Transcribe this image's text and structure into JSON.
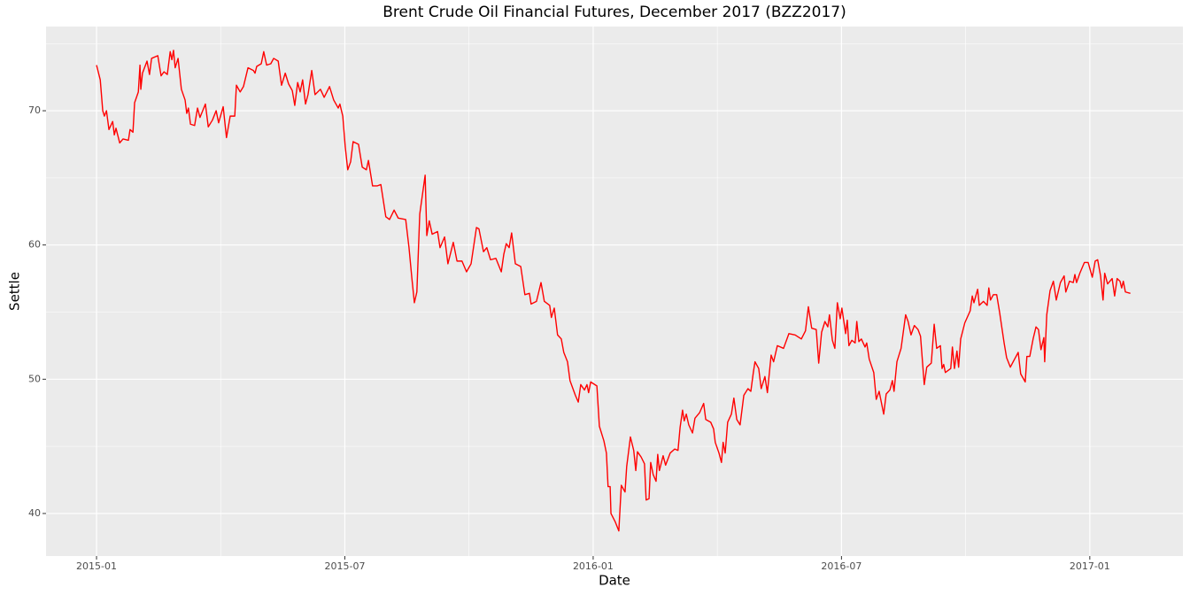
{
  "chart_data": {
    "type": "line",
    "title": "Brent Crude Oil Financial Futures, December 2017 (BZZ2017)",
    "x_label": "Date",
    "y_label": "Settle",
    "color": "#ff0000",
    "grid": true,
    "minor_grid": true,
    "xlim": [
      -1.22,
      26.25
    ],
    "ylim": [
      36.83,
      76.27
    ],
    "xticks": [
      {
        "value": 0,
        "label": "2015-01"
      },
      {
        "value": 6,
        "label": "2015-07"
      },
      {
        "value": 12,
        "label": "2016-01"
      },
      {
        "value": 18,
        "label": "2016-07"
      },
      {
        "value": 24,
        "label": "2017-01"
      }
    ],
    "yticks": [
      40,
      50,
      60,
      70
    ],
    "x": [
      0.0,
      0.09,
      0.15,
      0.19,
      0.24,
      0.3,
      0.39,
      0.43,
      0.47,
      0.56,
      0.64,
      0.77,
      0.81,
      0.88,
      0.92,
      1.01,
      1.05,
      1.07,
      1.11,
      1.22,
      1.28,
      1.33,
      1.48,
      1.56,
      1.63,
      1.71,
      1.78,
      1.82,
      1.86,
      1.9,
      1.97,
      2.05,
      2.14,
      2.18,
      2.22,
      2.27,
      2.37,
      2.44,
      2.5,
      2.63,
      2.7,
      2.8,
      2.89,
      2.95,
      3.06,
      3.14,
      3.23,
      3.34,
      3.38,
      3.47,
      3.55,
      3.66,
      3.79,
      3.83,
      3.87,
      3.98,
      4.04,
      4.11,
      4.21,
      4.28,
      4.39,
      4.47,
      4.56,
      4.64,
      4.73,
      4.79,
      4.86,
      4.92,
      4.98,
      5.05,
      5.11,
      5.2,
      5.28,
      5.41,
      5.5,
      5.63,
      5.73,
      5.84,
      5.88,
      5.95,
      6.01,
      6.07,
      6.14,
      6.2,
      6.33,
      6.42,
      6.52,
      6.57,
      6.67,
      6.78,
      6.87,
      6.93,
      6.99,
      7.08,
      7.19,
      7.29,
      7.47,
      7.55,
      7.62,
      7.68,
      7.74,
      7.81,
      7.94,
      7.98,
      8.04,
      8.11,
      8.24,
      8.3,
      8.41,
      8.49,
      8.62,
      8.71,
      8.83,
      8.94,
      9.05,
      9.18,
      9.24,
      9.35,
      9.43,
      9.52,
      9.65,
      9.78,
      9.84,
      9.9,
      9.97,
      10.03,
      10.12,
      10.25,
      10.35,
      10.46,
      10.5,
      10.63,
      10.74,
      10.82,
      10.95,
      10.99,
      11.06,
      11.14,
      11.23,
      11.29,
      11.38,
      11.44,
      11.57,
      11.64,
      11.7,
      11.79,
      11.85,
      11.89,
      11.94,
      12.09,
      12.15,
      12.26,
      12.32,
      12.36,
      12.41,
      12.43,
      12.53,
      12.62,
      12.68,
      12.77,
      12.81,
      12.9,
      12.98,
      13.03,
      13.07,
      13.16,
      13.24,
      13.28,
      13.35,
      13.39,
      13.45,
      13.52,
      13.56,
      13.6,
      13.69,
      13.75,
      13.86,
      13.97,
      14.05,
      14.1,
      14.16,
      14.2,
      14.25,
      14.31,
      14.4,
      14.46,
      14.57,
      14.67,
      14.72,
      14.84,
      14.91,
      14.95,
      15.04,
      15.1,
      15.14,
      15.19,
      15.25,
      15.34,
      15.4,
      15.47,
      15.55,
      15.64,
      15.74,
      15.81,
      15.87,
      15.91,
      16.0,
      16.06,
      16.15,
      16.21,
      16.3,
      16.36,
      16.45,
      16.6,
      16.73,
      16.88,
      17.03,
      17.13,
      17.2,
      17.28,
      17.39,
      17.45,
      17.52,
      17.6,
      17.67,
      17.71,
      17.78,
      17.84,
      17.9,
      17.97,
      18.01,
      18.1,
      18.14,
      18.18,
      18.25,
      18.33,
      18.37,
      18.42,
      18.48,
      18.57,
      18.61,
      18.67,
      18.78,
      18.84,
      18.91,
      19.02,
      19.08,
      19.17,
      19.23,
      19.27,
      19.34,
      19.44,
      19.55,
      19.61,
      19.68,
      19.76,
      19.85,
      19.91,
      20.0,
      20.06,
      20.17,
      20.24,
      20.3,
      20.39,
      20.43,
      20.47,
      20.51,
      20.64,
      20.68,
      20.73,
      20.79,
      20.83,
      20.88,
      20.98,
      21.11,
      21.16,
      21.2,
      21.29,
      21.33,
      21.43,
      21.52,
      21.56,
      21.6,
      21.67,
      21.75,
      21.82,
      21.93,
      21.99,
      22.08,
      22.2,
      22.27,
      22.33,
      22.44,
      22.48,
      22.55,
      22.63,
      22.7,
      22.76,
      22.82,
      22.89,
      22.91,
      22.96,
      23.04,
      23.12,
      23.19,
      23.29,
      23.38,
      23.42,
      23.51,
      23.6,
      23.64,
      23.68,
      23.76,
      23.87,
      23.96,
      24.06,
      24.13,
      24.19,
      24.26,
      24.32,
      24.36,
      24.43,
      24.54,
      24.6,
      24.66,
      24.73,
      24.77,
      24.81,
      24.86,
      24.98
    ],
    "values": [
      73.4,
      72.3,
      70.0,
      69.6,
      70.0,
      68.6,
      69.2,
      68.2,
      68.7,
      67.6,
      67.9,
      67.8,
      68.6,
      68.4,
      70.6,
      71.4,
      73.4,
      71.6,
      72.8,
      73.7,
      72.7,
      73.9,
      74.1,
      72.6,
      72.9,
      72.7,
      74.4,
      73.8,
      74.5,
      73.2,
      73.9,
      71.6,
      70.8,
      69.8,
      70.2,
      69.0,
      68.9,
      70.2,
      69.5,
      70.5,
      68.8,
      69.3,
      70.0,
      69.1,
      70.3,
      68.0,
      69.6,
      69.6,
      71.9,
      71.4,
      71.8,
      73.2,
      73.0,
      72.8,
      73.3,
      73.5,
      74.4,
      73.4,
      73.5,
      73.9,
      73.7,
      71.9,
      72.8,
      72.0,
      71.5,
      70.4,
      72.1,
      71.4,
      72.3,
      70.5,
      71.2,
      73.0,
      71.2,
      71.6,
      71.0,
      71.8,
      70.8,
      70.2,
      70.5,
      69.6,
      67.3,
      65.6,
      66.2,
      67.7,
      67.5,
      65.8,
      65.6,
      66.3,
      64.4,
      64.4,
      64.5,
      63.3,
      62.1,
      61.9,
      62.6,
      62.0,
      61.9,
      59.8,
      57.5,
      55.7,
      56.5,
      62.3,
      65.2,
      60.7,
      61.8,
      60.8,
      61.0,
      59.8,
      60.6,
      58.6,
      60.2,
      58.8,
      58.8,
      58.0,
      58.6,
      61.3,
      61.2,
      59.5,
      59.8,
      58.9,
      59.0,
      58.0,
      59.3,
      60.1,
      59.8,
      60.9,
      58.6,
      58.4,
      56.3,
      56.4,
      55.6,
      55.8,
      57.2,
      55.8,
      55.5,
      54.6,
      55.3,
      53.3,
      53.0,
      52.0,
      51.3,
      49.9,
      48.8,
      48.3,
      49.6,
      49.2,
      49.6,
      49.0,
      49.8,
      49.5,
      46.5,
      45.4,
      44.5,
      42.0,
      42.0,
      40.0,
      39.4,
      38.7,
      42.1,
      41.6,
      43.5,
      45.7,
      44.7,
      43.2,
      44.6,
      44.2,
      43.7,
      41.0,
      41.1,
      43.8,
      42.9,
      42.4,
      44.4,
      43.2,
      44.3,
      43.6,
      44.5,
      44.8,
      44.7,
      46.4,
      47.7,
      46.9,
      47.4,
      46.6,
      46.0,
      47.1,
      47.5,
      48.2,
      47.0,
      46.8,
      46.3,
      45.3,
      44.5,
      43.8,
      45.3,
      44.5,
      46.8,
      47.4,
      48.6,
      47.0,
      46.6,
      48.8,
      49.3,
      49.1,
      50.5,
      51.3,
      50.8,
      49.3,
      50.2,
      49.0,
      51.8,
      51.3,
      52.5,
      52.3,
      53.4,
      53.3,
      53.0,
      53.6,
      55.4,
      53.8,
      53.7,
      51.2,
      53.5,
      54.3,
      53.9,
      54.8,
      52.9,
      52.3,
      55.7,
      54.5,
      55.3,
      53.4,
      54.4,
      52.5,
      52.9,
      52.7,
      54.3,
      52.8,
      53.0,
      52.4,
      52.7,
      51.5,
      50.5,
      48.5,
      49.1,
      47.4,
      48.9,
      49.2,
      49.9,
      49.1,
      51.3,
      52.3,
      54.8,
      54.3,
      53.3,
      54.0,
      53.7,
      53.2,
      49.6,
      50.9,
      51.2,
      54.1,
      52.3,
      52.5,
      50.8,
      51.1,
      50.5,
      50.8,
      52.4,
      50.8,
      52.1,
      50.9,
      53.0,
      54.2,
      55.1,
      56.2,
      55.7,
      56.7,
      55.5,
      55.8,
      55.5,
      56.8,
      55.9,
      56.3,
      56.3,
      55.0,
      52.7,
      51.6,
      50.9,
      51.6,
      52.0,
      50.4,
      49.8,
      51.7,
      51.7,
      53.0,
      53.9,
      53.7,
      52.2,
      53.1,
      51.3,
      54.8,
      56.6,
      57.3,
      55.9,
      57.2,
      57.7,
      56.5,
      57.3,
      57.2,
      57.8,
      57.2,
      57.9,
      58.7,
      58.7,
      57.6,
      58.8,
      58.9,
      57.7,
      55.9,
      57.9,
      57.1,
      57.5,
      56.2,
      57.5,
      57.3,
      56.8,
      57.3,
      56.5,
      56.4
    ]
  }
}
